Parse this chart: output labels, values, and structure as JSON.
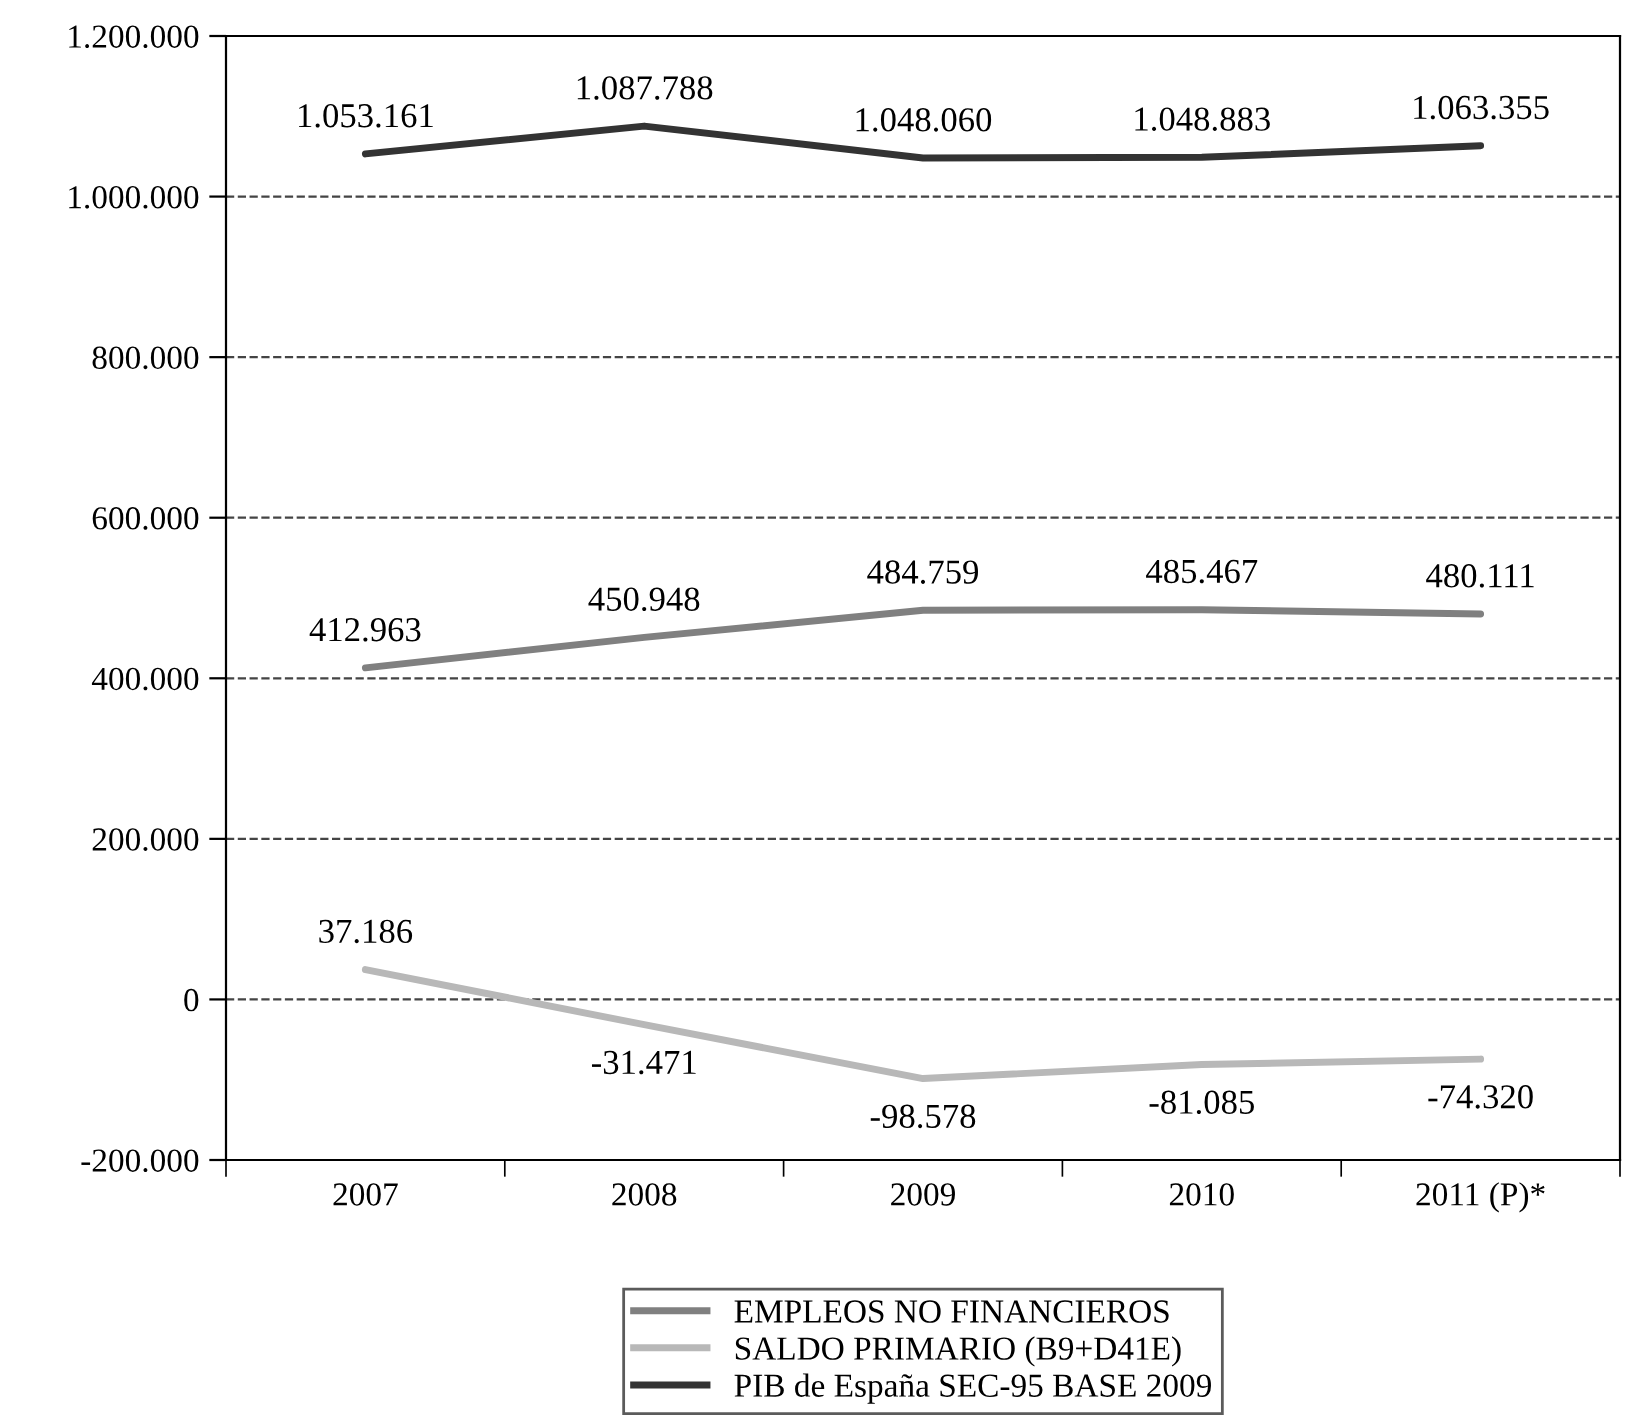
{
  "chart_data": {
    "type": "line",
    "categories": [
      "2007",
      "2008",
      "2009",
      "2010",
      "2011 (P)*"
    ],
    "series": [
      {
        "name": "EMPLEOS NO FINANCIEROS",
        "color": "#808080",
        "values": [
          412963,
          450948,
          484759,
          485467,
          480111
        ],
        "value_labels": [
          "412.963",
          "450.948",
          "484.759",
          "485.467",
          "480.111"
        ]
      },
      {
        "name": "SALDO PRIMARIO (B9+D41E)",
        "color": "#b8b8b8",
        "values": [
          37186,
          -31471,
          -98578,
          -81085,
          -74320
        ],
        "value_labels": [
          "37.186",
          "-31.471",
          "-98.578",
          "-81.085",
          "-74.320"
        ]
      },
      {
        "name": "PIB de España SEC-95 BASE 2009",
        "color": "#333333",
        "values": [
          1053161,
          1087788,
          1048060,
          1048883,
          1063355
        ],
        "value_labels": [
          "1.053.161",
          "1.087.788",
          "1.048.060",
          "1.048.883",
          "1.063.355"
        ]
      }
    ],
    "ylim": [
      -200000,
      1200000
    ],
    "yticks": [
      {
        "value": -200000,
        "label": "-200.000"
      },
      0,
      {
        "value": 200000,
        "label": "200.000"
      },
      {
        "value": 400000,
        "label": "400.000"
      },
      {
        "value": 600000,
        "label": "600.000"
      },
      {
        "value": 800000,
        "label": "800.000"
      },
      {
        "value": 1000000,
        "label": "1.000.000"
      },
      {
        "value": 1200000,
        "label": "1.200.000"
      }
    ],
    "grid": "y",
    "legend": "bottom",
    "marker": "none",
    "line_style": "solid"
  }
}
